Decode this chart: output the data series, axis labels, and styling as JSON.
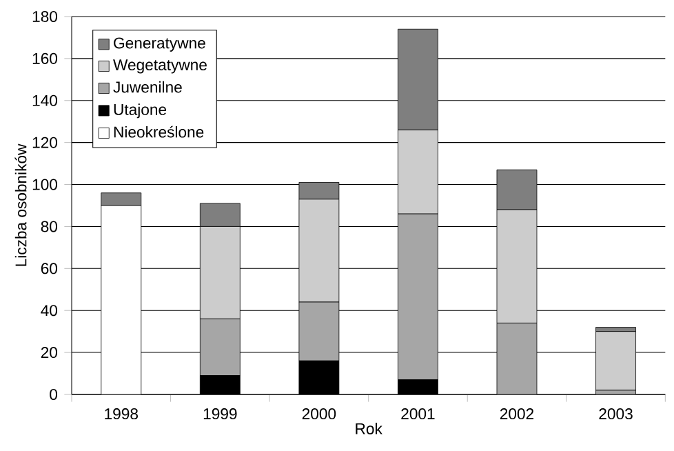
{
  "chart_data": {
    "type": "bar",
    "stacked": true,
    "xlabel": "Rok",
    "ylabel": "Liczba osobników",
    "categories": [
      "1998",
      "1999",
      "2000",
      "2001",
      "2002",
      "2003"
    ],
    "series": [
      {
        "name": "Nieokreślone",
        "color": "#ffffff",
        "values": [
          90,
          0,
          0,
          0,
          0,
          0
        ]
      },
      {
        "name": "Utajone",
        "color": "#000000",
        "values": [
          0,
          9,
          16,
          7,
          0,
          0
        ]
      },
      {
        "name": "Juwenilne",
        "color": "#a6a6a6",
        "values": [
          0,
          27,
          28,
          79,
          34,
          2
        ]
      },
      {
        "name": "Wegetatywne",
        "color": "#cccccc",
        "values": [
          0,
          44,
          49,
          40,
          54,
          28
        ]
      },
      {
        "name": "Generatywne",
        "color": "#7f7f7f",
        "values": [
          6,
          11,
          8,
          48,
          19,
          2
        ]
      }
    ],
    "ylim": [
      0,
      180
    ],
    "yticks": [
      0,
      20,
      40,
      60,
      80,
      100,
      120,
      140,
      160,
      180
    ],
    "grid": "y",
    "legend": "top left"
  }
}
